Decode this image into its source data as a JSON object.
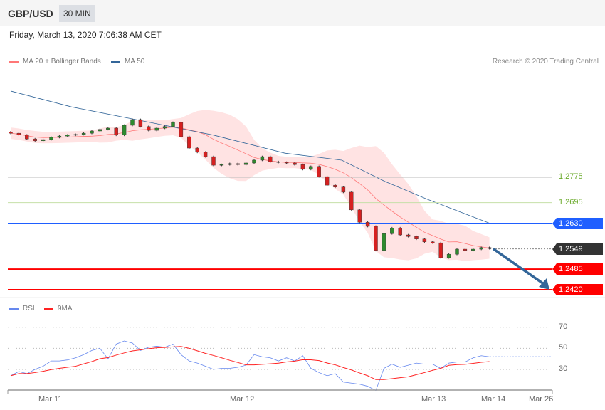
{
  "header": {
    "symbol": "GBP/USD",
    "timeframe": "30 MIN",
    "datetime": "Friday, March 13, 2020 7:06:38 AM CET"
  },
  "legend": {
    "ma20": "MA 20 + Bollinger Bands",
    "ma50": "MA 50",
    "credit": "Research © 2020 Trading Central"
  },
  "rsi_legend": {
    "rsi": "RSI",
    "ma9": "9MA"
  },
  "colors": {
    "ma20": "#ff7777",
    "ma50": "#336699",
    "band": "#ffe3e3",
    "up": "#2e8b2e",
    "down": "#d62020",
    "resistance": "#6aaa2a",
    "pivot": "#1f5fff",
    "current": "#333333",
    "support": "#ff0000",
    "arrow": "#336699",
    "rsi": "#6688ee",
    "ma9": "#ff2222"
  },
  "chart_data": [
    {
      "type": "candlestick",
      "closes": [
        1.2914,
        1.2908,
        1.2896,
        1.289,
        1.2894,
        1.2901,
        1.2905,
        1.2908,
        1.291,
        1.2914,
        1.2921,
        1.2926,
        1.293,
        1.2908,
        1.2939,
        1.2957,
        1.2935,
        1.2923,
        1.293,
        1.2935,
        1.2948,
        1.2903,
        1.2867,
        1.2854,
        1.284,
        1.2813,
        1.2815,
        1.2818,
        1.2815,
        1.282,
        1.2829,
        1.284,
        1.2824,
        1.2822,
        1.282,
        1.2815,
        1.28,
        1.2809,
        1.2777,
        1.275,
        1.2744,
        1.2728,
        1.2672,
        1.2633,
        1.262,
        1.2544,
        1.2597,
        1.2615,
        1.2593,
        1.2588,
        1.258,
        1.2571,
        1.2568,
        1.2521,
        1.2532,
        1.2548,
        1.2544,
        1.2548,
        1.2553,
        1.255
      ],
      "ma50": {
        "index": [
          0,
          7.5,
          16.2,
          25,
          33.8,
          40.8,
          46.1,
          51.3,
          59
        ],
        "values": [
          1.3047,
          1.2997,
          1.2953,
          1.2908,
          1.2851,
          1.2829,
          1.2762,
          1.2706,
          1.263
        ]
      },
      "levels": [
        {
          "label": "1.2775",
          "value": 1.2775,
          "kind": "resistance"
        },
        {
          "label": "1.2695",
          "value": 1.2695,
          "kind": "resistance"
        },
        {
          "label": "1.2630",
          "value": 1.263,
          "kind": "pivot"
        },
        {
          "label": "1.2549",
          "value": 1.2549,
          "kind": "current"
        },
        {
          "label": "1.2485",
          "value": 1.2485,
          "kind": "support"
        },
        {
          "label": "1.2420",
          "value": 1.242,
          "kind": "support"
        }
      ],
      "arrow": {
        "from": 1.2549,
        "to": 1.242,
        "direction": "down"
      }
    },
    {
      "type": "line",
      "series": [
        {
          "name": "RSI",
          "values": [
            24,
            28,
            26,
            30,
            33,
            38,
            38,
            39,
            41,
            44,
            48,
            50,
            40,
            54,
            57,
            55,
            48,
            51,
            52,
            51,
            54,
            44,
            38,
            36,
            33,
            30,
            31,
            31,
            32,
            34,
            44,
            42,
            41,
            38,
            41,
            38,
            43,
            31,
            27,
            24,
            26,
            18,
            17,
            16,
            14,
            10,
            31,
            35,
            32,
            34,
            36,
            35,
            35,
            31,
            36,
            37,
            37,
            41,
            43,
            42
          ]
        },
        {
          "name": "9MA",
          "window": 9
        }
      ],
      "yticks": [
        {
          "label": "70",
          "value": 70
        },
        {
          "label": "50",
          "value": 50
        },
        {
          "label": "30",
          "value": 30
        }
      ],
      "xticks": [
        "Mar 11",
        "Mar 12",
        "Mar 13",
        "Mar 14",
        "Mar 26"
      ]
    }
  ]
}
